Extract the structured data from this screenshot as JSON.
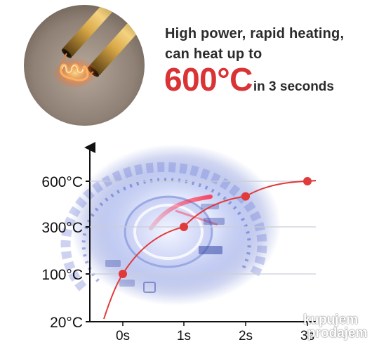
{
  "headline": {
    "line1": "High power, rapid heating,",
    "line2": "can heat up to",
    "temperature": "600°C",
    "suffix": "in 3 seconds"
  },
  "colors": {
    "accent_red": "#d93336",
    "curve_red": "#e03a3a",
    "text_dark": "#2b2b2b",
    "grid": "#c9cdd8",
    "gauge_blue": "#4d63c8"
  },
  "icons": {
    "heating_element": "heating-element-icon",
    "speedometer": "speedometer-icon"
  },
  "chart_data": {
    "type": "line",
    "x_ticks": [
      "0s",
      "1s",
      "2s",
      "3s"
    ],
    "y_ticks": [
      "20°C",
      "100°C",
      "300°C",
      "600°C"
    ],
    "series": [
      {
        "x": [
          0,
          1,
          2,
          3
        ],
        "y": [
          100,
          300,
          500,
          600
        ]
      }
    ],
    "y_levels": [
      20,
      100,
      300,
      600
    ],
    "grid": true,
    "legend": "none"
  },
  "watermark": {
    "line1": "kupujem",
    "line2": "prodajem"
  }
}
